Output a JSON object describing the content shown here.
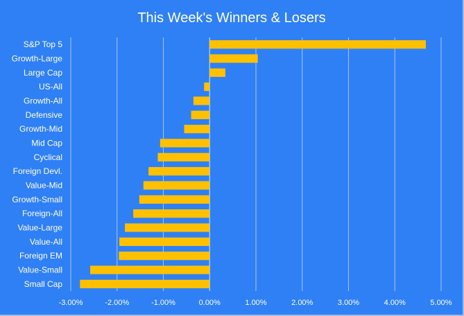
{
  "chart_data": {
    "type": "bar",
    "orientation": "horizontal",
    "title": "This Week's Winners & Losers",
    "categories": [
      "S&P Top 5",
      "Growth-Large",
      "Large Cap",
      "US-All",
      "Growth-All",
      "Defensive",
      "Growth-Mid",
      "Mid Cap",
      "Cyclical",
      "Foreign Devl.",
      "Value-Mid",
      "Growth-Small",
      "Foreign-All",
      "Value-Large",
      "Value-All",
      "Foreign EM",
      "Value-Small",
      "Small Cap"
    ],
    "values": [
      4.67,
      1.04,
      0.34,
      -0.12,
      -0.35,
      -0.4,
      -0.55,
      -1.07,
      -1.12,
      -1.32,
      -1.43,
      -1.52,
      -1.65,
      -1.83,
      -1.95,
      -1.96,
      -2.58,
      -2.8
    ],
    "value_unit": "%",
    "xlim": [
      -3,
      5
    ],
    "x_ticks": [
      "-3.00%",
      "-2.00%",
      "-1.00%",
      "0.00%",
      "1.00%",
      "2.00%",
      "3.00%",
      "4.00%",
      "5.00%"
    ],
    "grid": true,
    "bar_color": "#ffc000",
    "background_color": "#2f80f5",
    "legend": "none"
  }
}
